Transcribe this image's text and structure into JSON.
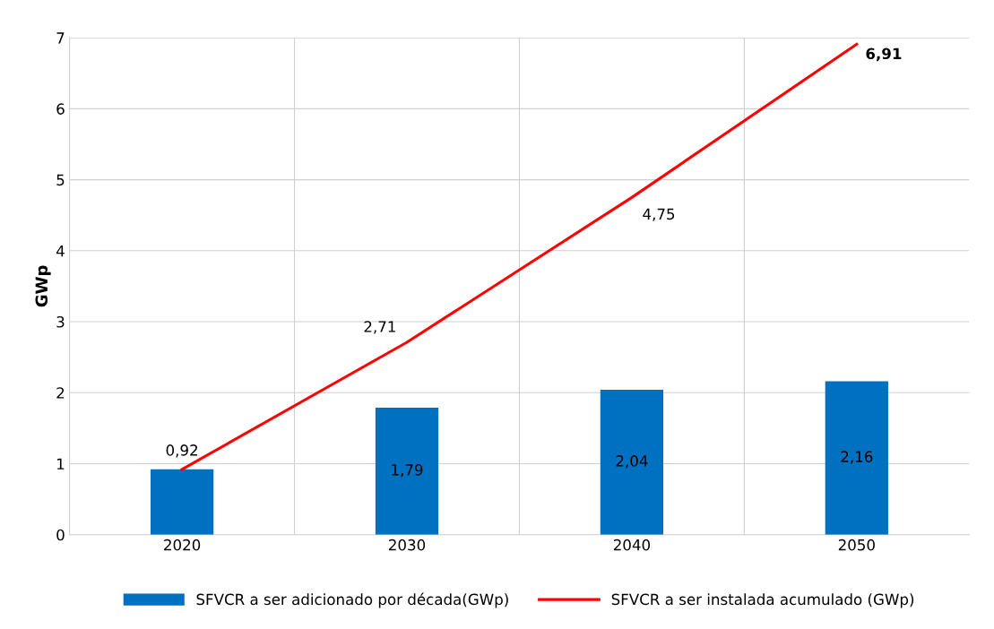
{
  "chart_data": {
    "type": "bar",
    "ylabel": "GWp",
    "categories": [
      "2020",
      "2030",
      "2040",
      "2050"
    ],
    "series": [
      {
        "name": "SFVCR a ser adicionado por década(GWp)",
        "color": "#0070c0",
        "values": [
          0.92,
          1.79,
          2.04,
          2.16
        ],
        "value_labels": [
          "0,92",
          "1,79",
          "2,04",
          "2,16"
        ]
      },
      {
        "name": "SFVCR a ser instalada acumulado (GWp)",
        "type": "line",
        "color": "#ff0000",
        "values": [
          0.92,
          2.71,
          4.75,
          6.91
        ],
        "value_labels": [
          null,
          "2,71",
          "4,75",
          "6,91"
        ]
      }
    ],
    "ylim": [
      0,
      7
    ],
    "yticks": [
      0,
      1,
      2,
      3,
      4,
      5,
      6,
      7
    ],
    "grid": true,
    "legend": "bottom",
    "marker": "none",
    "line_style": "solid"
  }
}
